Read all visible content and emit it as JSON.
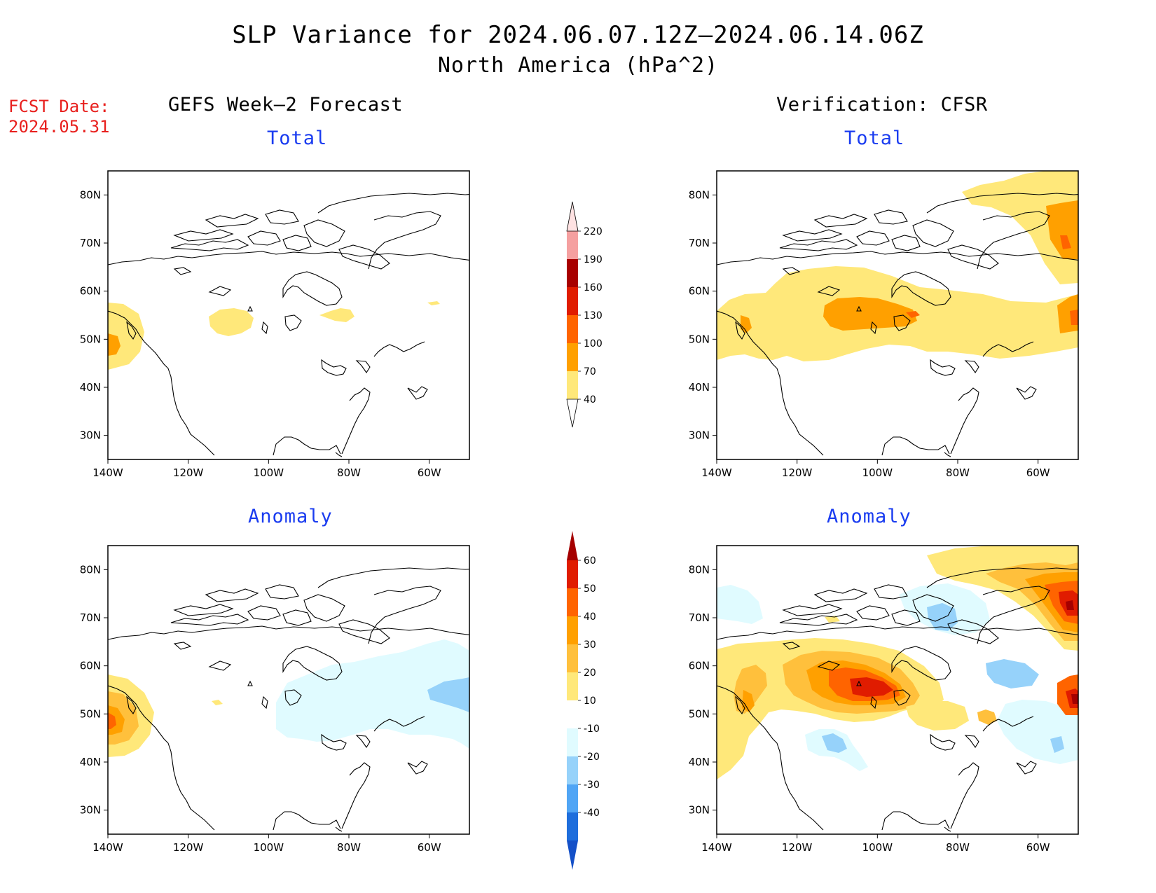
{
  "title": {
    "line1": "SLP Variance for 2024.06.07.12Z–2024.06.14.06Z",
    "line2": "North America (hPa^2)"
  },
  "fcst_date": {
    "label": "FCST Date:",
    "value": "2024.05.31"
  },
  "columns": {
    "left": "GEFS Week–2 Forecast",
    "right": "Verification: CFSR"
  },
  "panel_titles": {
    "total": "Total",
    "anomaly": "Anomaly"
  },
  "axes": {
    "lon_ticks": [
      "140W",
      "120W",
      "100W",
      "80W",
      "60W"
    ],
    "lat_ticks": [
      "80N",
      "70N",
      "60N",
      "50N",
      "40N",
      "30N"
    ]
  },
  "colorbars": {
    "total": {
      "levels": [
        "40",
        "70",
        "100",
        "130",
        "160",
        "190",
        "220"
      ],
      "colors": [
        "#ffe87a",
        "#ffa000",
        "#ff6400",
        "#e01c00",
        "#a80000",
        "#f5a0a0",
        "#ffe2e2"
      ]
    },
    "anomaly": {
      "levels": [
        "60",
        "50",
        "40",
        "30",
        "20",
        "10",
        "-10",
        "-20",
        "-30",
        "-40"
      ],
      "colors_warm": [
        "#a50000",
        "#e01c00",
        "#ff6400",
        "#ffa000",
        "#ffc03c",
        "#ffe87a"
      ],
      "colors_cool": [
        "#e0fbff",
        "#96d2fa",
        "#50a5f5",
        "#1e6edc",
        "#1450c8"
      ]
    }
  },
  "palette": {
    "y1": "#ffe87a",
    "y2": "#ffc03c",
    "o1": "#ffa000",
    "o2": "#ff6400",
    "r1": "#e01c00",
    "r2": "#a50000",
    "b1": "#e0fbff",
    "b2": "#96d2fa",
    "b3": "#50a5f5"
  }
}
